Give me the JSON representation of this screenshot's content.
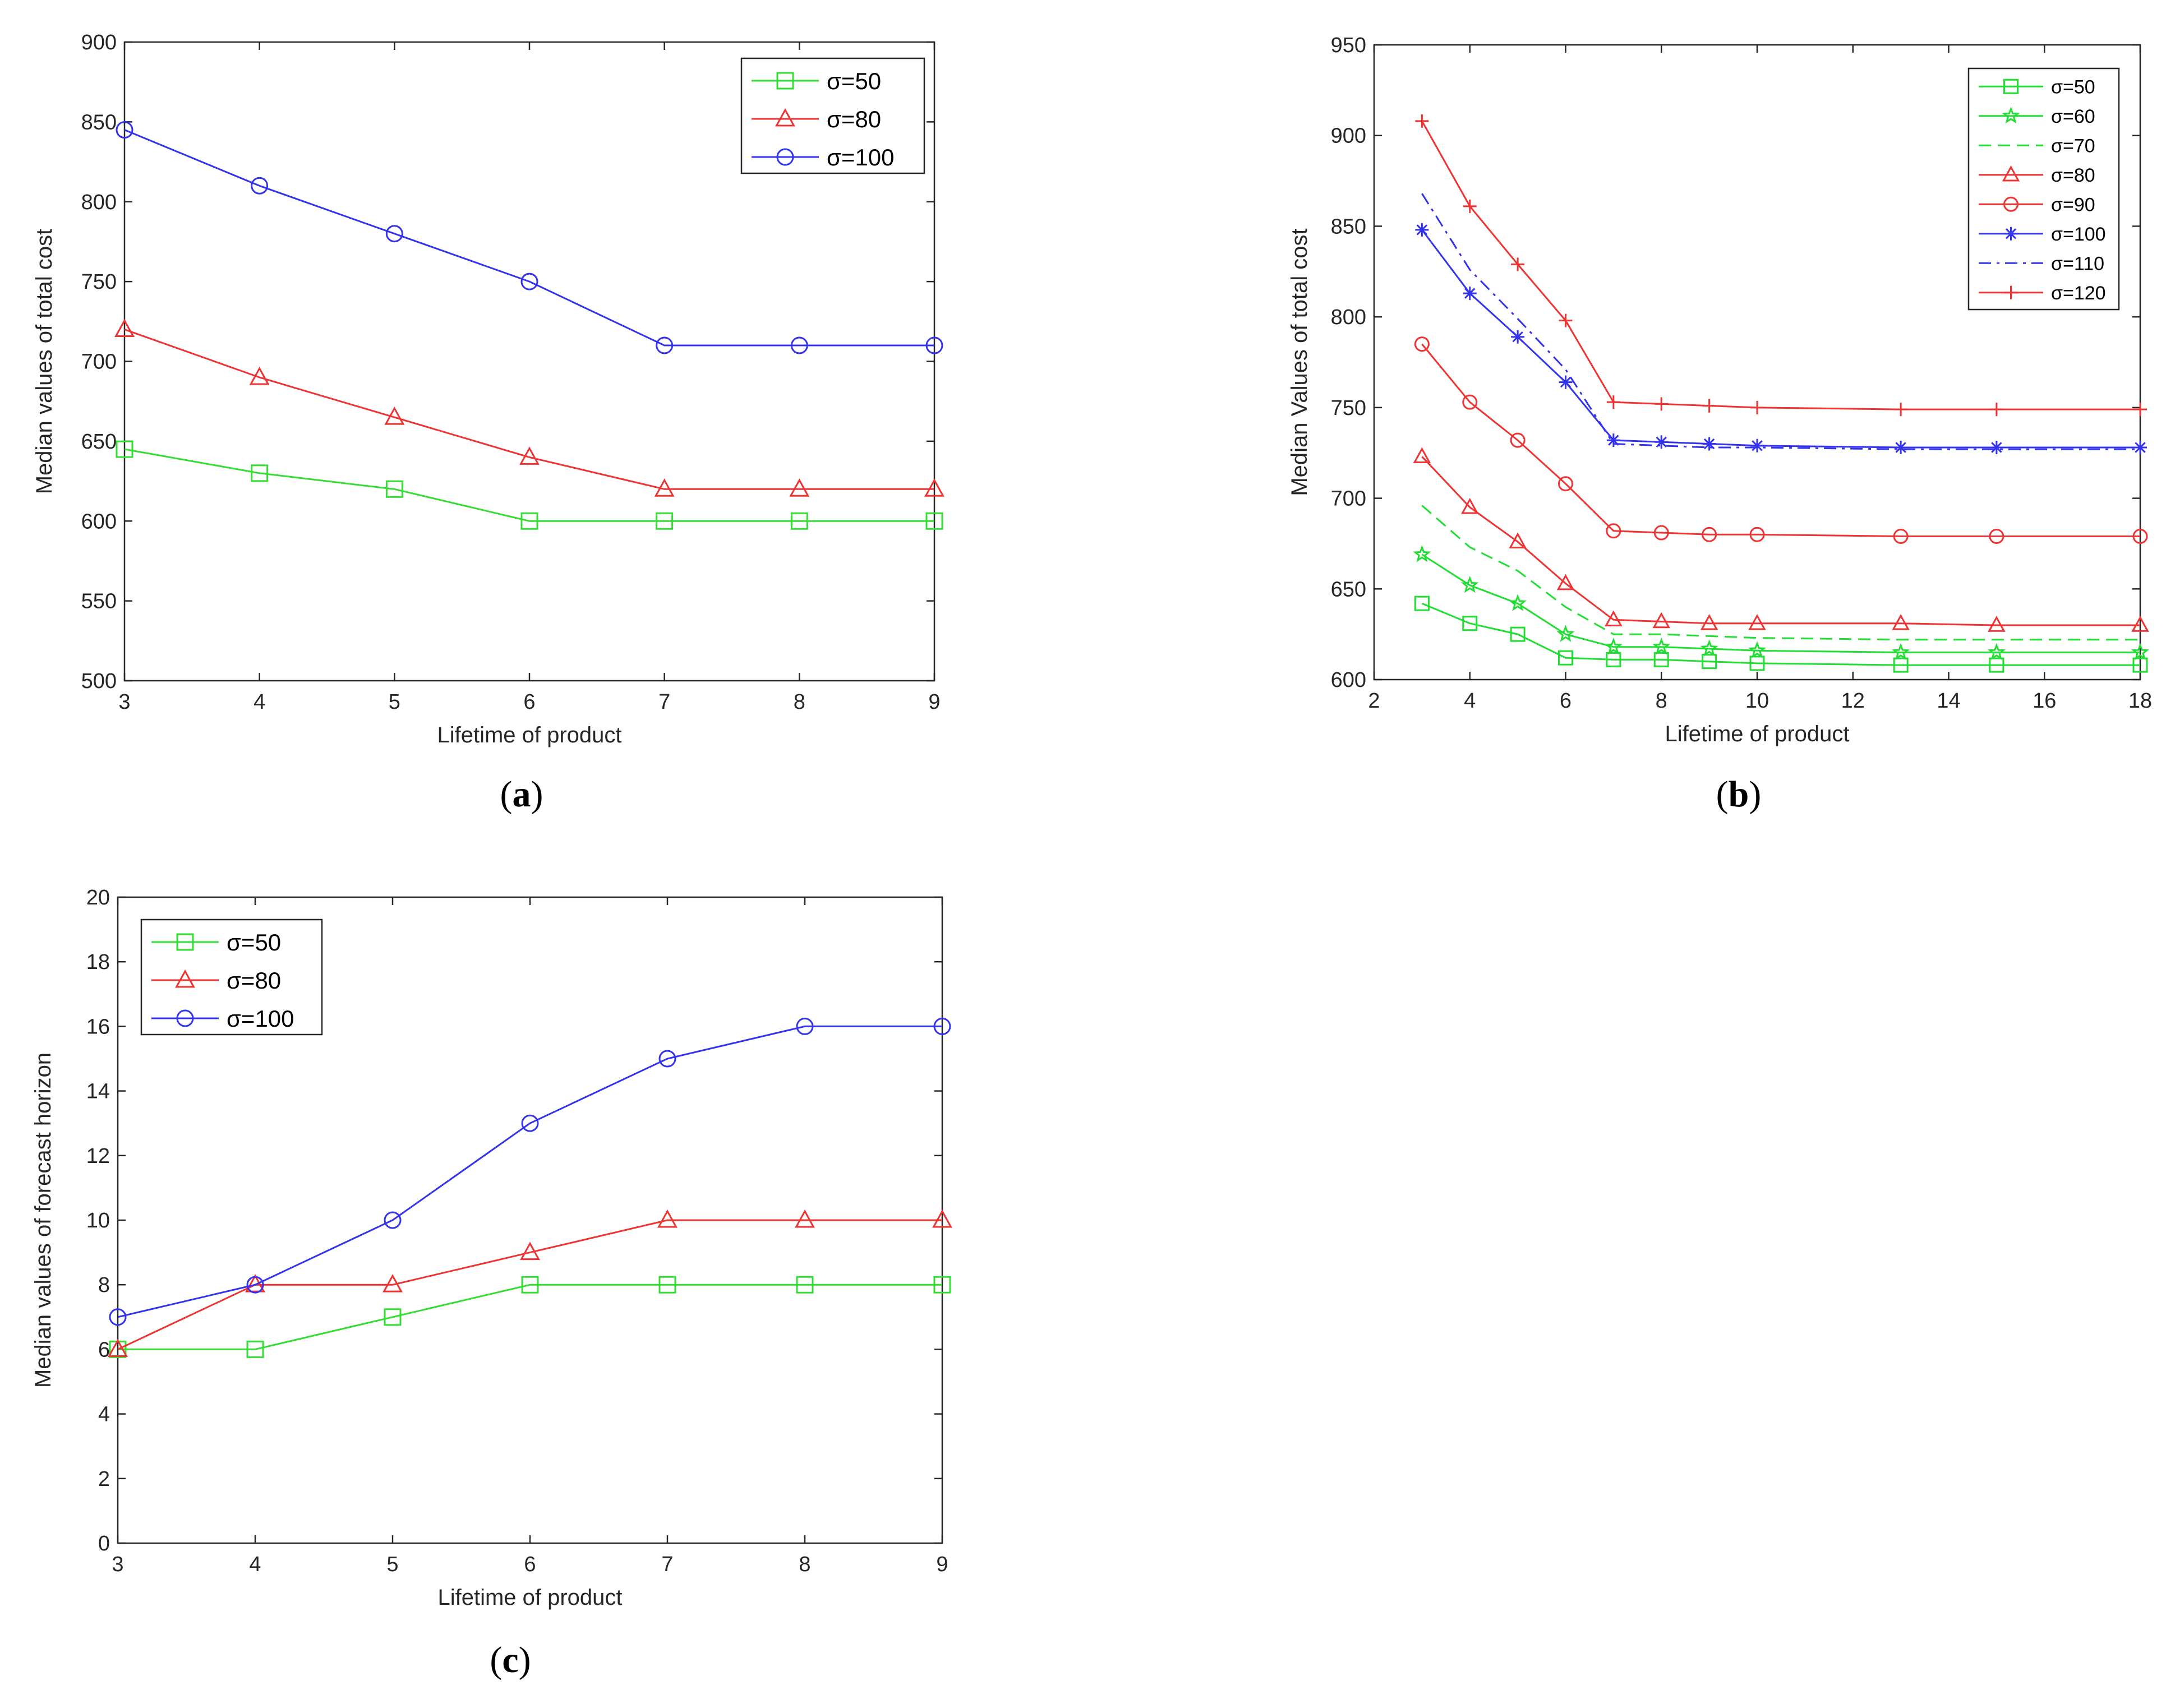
{
  "chart_data": [
    {
      "id": "a",
      "type": "line",
      "caption": "a",
      "xlabel": "Lifetime of product",
      "ylabel": "Median values of total cost",
      "xlim": [
        3,
        9
      ],
      "ylim": [
        500,
        900
      ],
      "xticks": [
        3,
        4,
        5,
        6,
        7,
        8,
        9
      ],
      "yticks": [
        500,
        550,
        600,
        650,
        700,
        750,
        800,
        850,
        900
      ],
      "legend_position": "top-right",
      "series": [
        {
          "name": "σ=50",
          "color": "#33dd33",
          "marker": "square",
          "dash": "solid",
          "x": [
            3,
            4,
            5,
            6,
            7,
            8,
            9
          ],
          "y": [
            645,
            630,
            620,
            600,
            600,
            600,
            600
          ]
        },
        {
          "name": "σ=80",
          "color": "#ee3333",
          "marker": "triangle",
          "dash": "solid",
          "x": [
            3,
            4,
            5,
            6,
            7,
            8,
            9
          ],
          "y": [
            720,
            690,
            665,
            640,
            620,
            620,
            620
          ]
        },
        {
          "name": "σ=100",
          "color": "#3333ee",
          "marker": "circle",
          "dash": "solid",
          "x": [
            3,
            4,
            5,
            6,
            7,
            8,
            9
          ],
          "y": [
            845,
            810,
            780,
            750,
            710,
            710,
            710
          ]
        }
      ]
    },
    {
      "id": "b",
      "type": "line",
      "caption": "b",
      "xlabel": "Lifetime of product",
      "ylabel": "Median Values of total cost",
      "xlim": [
        2,
        18
      ],
      "ylim": [
        600,
        950
      ],
      "xticks": [
        2,
        4,
        6,
        8,
        10,
        12,
        14,
        16,
        18
      ],
      "yticks": [
        600,
        650,
        700,
        750,
        800,
        850,
        900,
        950
      ],
      "legend_position": "top-right",
      "series": [
        {
          "name": "σ=50",
          "color": "#22dd33",
          "marker": "square",
          "dash": "solid",
          "x": [
            3,
            4,
            5,
            6,
            7,
            8,
            9,
            10,
            13,
            15,
            18
          ],
          "y": [
            642,
            631,
            625,
            612,
            611,
            611,
            610,
            609,
            608,
            608,
            608
          ]
        },
        {
          "name": "σ=60",
          "color": "#22dd33",
          "marker": "star",
          "dash": "solid",
          "x": [
            3,
            4,
            5,
            6,
            7,
            8,
            9,
            10,
            13,
            15,
            18
          ],
          "y": [
            669,
            652,
            642,
            625,
            618,
            618,
            617,
            616,
            615,
            615,
            615
          ]
        },
        {
          "name": "σ=70",
          "color": "#22dd33",
          "marker": "none",
          "dash": "dashed",
          "x": [
            3,
            4,
            5,
            6,
            7,
            8,
            9,
            10,
            13,
            15,
            18
          ],
          "y": [
            696,
            673,
            660,
            640,
            625,
            625,
            624,
            623,
            622,
            622,
            622
          ]
        },
        {
          "name": "σ=80",
          "color": "#ee3333",
          "marker": "triangle",
          "dash": "solid",
          "x": [
            3,
            4,
            5,
            6,
            7,
            8,
            9,
            10,
            13,
            15,
            18
          ],
          "y": [
            723,
            695,
            676,
            653,
            633,
            632,
            631,
            631,
            631,
            630,
            630
          ]
        },
        {
          "name": "σ=90",
          "color": "#ee3333",
          "marker": "circle",
          "dash": "solid",
          "x": [
            3,
            4,
            5,
            6,
            7,
            8,
            9,
            10,
            13,
            15,
            18
          ],
          "y": [
            785,
            753,
            732,
            708,
            682,
            681,
            680,
            680,
            679,
            679,
            679
          ]
        },
        {
          "name": "σ=100",
          "color": "#3333ee",
          "marker": "asterisk",
          "dash": "solid",
          "x": [
            3,
            4,
            5,
            6,
            7,
            8,
            9,
            10,
            13,
            15,
            18
          ],
          "y": [
            848,
            813,
            789,
            764,
            732,
            731,
            730,
            729,
            728,
            728,
            728
          ]
        },
        {
          "name": "σ=110",
          "color": "#3333ee",
          "marker": "none",
          "dash": "dashdot",
          "x": [
            3,
            4,
            5,
            6,
            7,
            8,
            9,
            10,
            13,
            15,
            18
          ],
          "y": [
            868,
            826,
            799,
            771,
            730,
            729,
            728,
            728,
            727,
            727,
            727
          ]
        },
        {
          "name": "σ=120",
          "color": "#ee3333",
          "marker": "plus",
          "dash": "solid",
          "x": [
            3,
            4,
            5,
            6,
            7,
            8,
            9,
            10,
            13,
            15,
            18
          ],
          "y": [
            908,
            861,
            829,
            798,
            753,
            752,
            751,
            750,
            749,
            749,
            749
          ]
        }
      ]
    },
    {
      "id": "c",
      "type": "line",
      "caption": "c",
      "xlabel": "Lifetime of product",
      "ylabel": "Median values of forecast horizon",
      "xlim": [
        3,
        9
      ],
      "ylim": [
        0,
        20
      ],
      "xticks": [
        3,
        4,
        5,
        6,
        7,
        8,
        9
      ],
      "yticks": [
        0,
        2,
        4,
        6,
        8,
        10,
        12,
        14,
        16,
        18,
        20
      ],
      "legend_position": "top-left",
      "series": [
        {
          "name": "σ=50",
          "color": "#33dd33",
          "marker": "square",
          "dash": "solid",
          "x": [
            3,
            4,
            5,
            6,
            7,
            8,
            9
          ],
          "y": [
            6,
            6,
            7,
            8,
            8,
            8,
            8
          ]
        },
        {
          "name": "σ=80",
          "color": "#ee3333",
          "marker": "triangle",
          "dash": "solid",
          "x": [
            3,
            4,
            5,
            6,
            7,
            8,
            9
          ],
          "y": [
            6,
            8,
            8,
            9,
            10,
            10,
            10
          ]
        },
        {
          "name": "σ=100",
          "color": "#3333ee",
          "marker": "circle",
          "dash": "solid",
          "x": [
            3,
            4,
            5,
            6,
            7,
            8,
            9
          ],
          "y": [
            7,
            8,
            10,
            13,
            15,
            16,
            16
          ]
        }
      ]
    }
  ]
}
